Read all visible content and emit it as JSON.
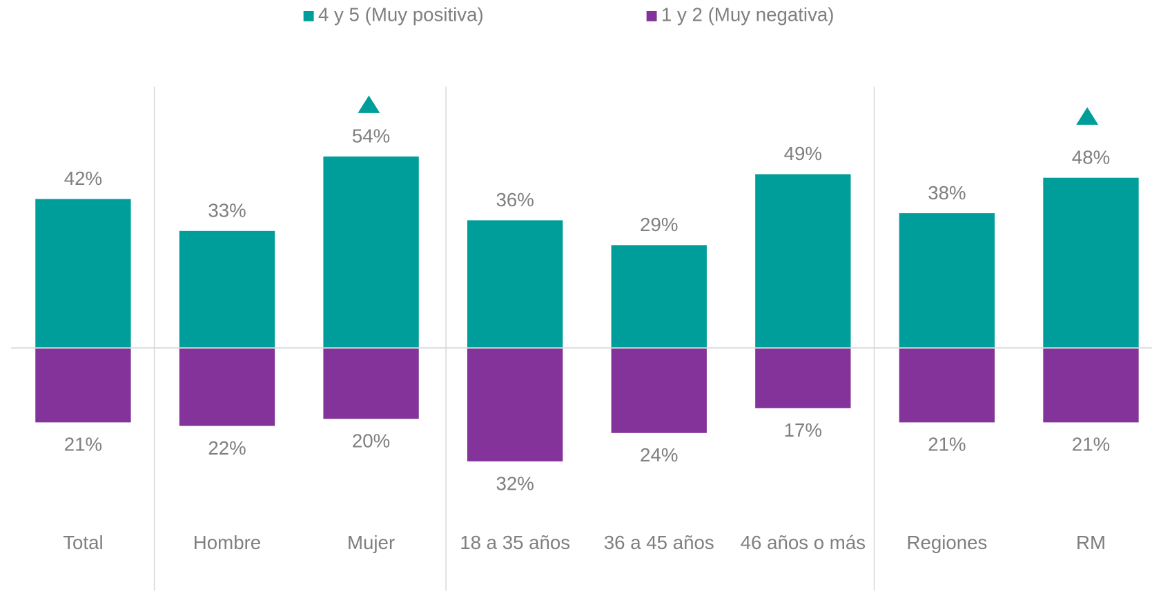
{
  "chart_data": {
    "type": "diverging_bar",
    "categories": [
      "Total",
      "Hombre",
      "Mujer",
      "18 a 35 años",
      "36 a 45 años",
      "46 años o más",
      "Regiones",
      "RM"
    ],
    "series": [
      {
        "name": "4 y 5 (Muy positiva)",
        "color": "#009e9a",
        "direction": "up",
        "values": [
          42,
          33,
          54,
          36,
          29,
          49,
          38,
          48
        ],
        "value_labels": [
          "42%",
          "33%",
          "54%",
          "36%",
          "29%",
          "49%",
          "38%",
          "48%"
        ]
      },
      {
        "name": "1 y 2 (Muy negativa)",
        "color": "#833399",
        "direction": "down",
        "values": [
          21,
          22,
          20,
          32,
          24,
          17,
          21,
          21
        ],
        "value_labels": [
          "21%",
          "22%",
          "20%",
          "32%",
          "24%",
          "17%",
          "21%",
          "21%"
        ]
      }
    ],
    "legend": "top"
  }
}
